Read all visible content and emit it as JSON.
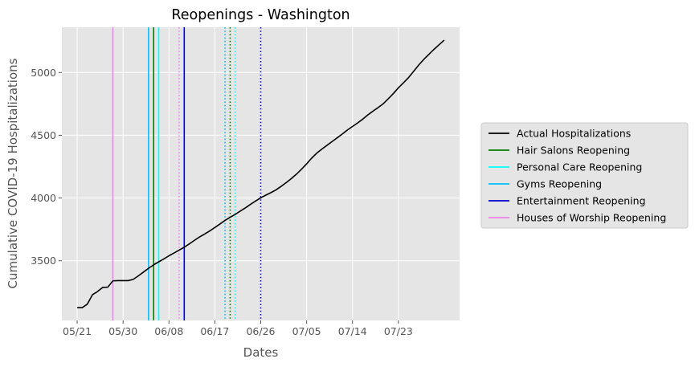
{
  "chart_data": {
    "type": "line",
    "title": "Reopenings - Washington",
    "xlabel": "Dates",
    "ylabel": "Cumulative COVID-19 Hospitalizations",
    "x_tick_labels": [
      "05/21",
      "05/30",
      "06/08",
      "06/17",
      "06/26",
      "07/05",
      "07/14",
      "07/23"
    ],
    "x_ticks": [
      "2020-05-21",
      "2020-05-30",
      "2020-06-08",
      "2020-06-17",
      "2020-06-26",
      "2020-07-05",
      "2020-07-14",
      "2020-07-23"
    ],
    "y_ticks": [
      3500,
      4000,
      4500,
      5000
    ],
    "x_range": [
      "2020-05-18",
      "2020-08-04"
    ],
    "ylim": [
      3025,
      5360
    ],
    "grid": true,
    "legend_position": "right outside",
    "series": [
      {
        "name": "Actual Hospitalizations",
        "color": "#000000",
        "points": [
          [
            "2020-05-21",
            3127
          ],
          [
            "2020-05-22",
            3127
          ],
          [
            "2020-05-23",
            3155
          ],
          [
            "2020-05-24",
            3230
          ],
          [
            "2020-05-25",
            3255
          ],
          [
            "2020-05-26",
            3288
          ],
          [
            "2020-05-27",
            3290
          ],
          [
            "2020-05-28",
            3340
          ],
          [
            "2020-05-29",
            3342
          ],
          [
            "2020-05-30",
            3342
          ],
          [
            "2020-05-31",
            3342
          ],
          [
            "2020-06-01",
            3352
          ],
          [
            "2020-06-02",
            3380
          ],
          [
            "2020-06-03",
            3410
          ],
          [
            "2020-06-04",
            3440
          ],
          [
            "2020-06-05",
            3468
          ],
          [
            "2020-06-06",
            3492
          ],
          [
            "2020-06-07",
            3515
          ],
          [
            "2020-06-08",
            3540
          ],
          [
            "2020-06-09",
            3562
          ],
          [
            "2020-06-10",
            3585
          ],
          [
            "2020-06-11",
            3608
          ],
          [
            "2020-06-12",
            3635
          ],
          [
            "2020-06-13",
            3663
          ],
          [
            "2020-06-14",
            3690
          ],
          [
            "2020-06-15",
            3713
          ],
          [
            "2020-06-16",
            3738
          ],
          [
            "2020-06-17",
            3765
          ],
          [
            "2020-06-18",
            3793
          ],
          [
            "2020-06-19",
            3822
          ],
          [
            "2020-06-20",
            3847
          ],
          [
            "2020-06-21",
            3870
          ],
          [
            "2020-06-22",
            3896
          ],
          [
            "2020-06-23",
            3922
          ],
          [
            "2020-06-24",
            3950
          ],
          [
            "2020-06-25",
            3976
          ],
          [
            "2020-06-26",
            4002
          ],
          [
            "2020-06-27",
            4023
          ],
          [
            "2020-06-28",
            4043
          ],
          [
            "2020-06-29",
            4065
          ],
          [
            "2020-06-30",
            4093
          ],
          [
            "2020-07-01",
            4123
          ],
          [
            "2020-07-02",
            4155
          ],
          [
            "2020-07-03",
            4190
          ],
          [
            "2020-07-04",
            4230
          ],
          [
            "2020-07-05",
            4272
          ],
          [
            "2020-07-06",
            4318
          ],
          [
            "2020-07-07",
            4358
          ],
          [
            "2020-07-08",
            4390
          ],
          [
            "2020-07-09",
            4420
          ],
          [
            "2020-07-10",
            4450
          ],
          [
            "2020-07-11",
            4480
          ],
          [
            "2020-07-12",
            4510
          ],
          [
            "2020-07-13",
            4542
          ],
          [
            "2020-07-14",
            4570
          ],
          [
            "2020-07-15",
            4598
          ],
          [
            "2020-07-16",
            4628
          ],
          [
            "2020-07-17",
            4662
          ],
          [
            "2020-07-18",
            4692
          ],
          [
            "2020-07-19",
            4720
          ],
          [
            "2020-07-20",
            4750
          ],
          [
            "2020-07-21",
            4790
          ],
          [
            "2020-07-22",
            4832
          ],
          [
            "2020-07-23",
            4878
          ],
          [
            "2020-07-24",
            4918
          ],
          [
            "2020-07-25",
            4960
          ],
          [
            "2020-07-26",
            5010
          ],
          [
            "2020-07-27",
            5060
          ],
          [
            "2020-07-28",
            5105
          ],
          [
            "2020-07-29",
            5145
          ],
          [
            "2020-07-30",
            5185
          ],
          [
            "2020-07-31",
            5222
          ],
          [
            "2020-08-01",
            5258
          ]
        ]
      }
    ],
    "reopening_lines": [
      {
        "name": "Hair Salons Reopening",
        "color": "#008000",
        "style": "solid",
        "date": "2020-06-05",
        "in_legend": true
      },
      {
        "name": "Personal Care Reopening",
        "color": "#00ffff",
        "style": "solid",
        "date": "2020-06-06",
        "in_legend": true
      },
      {
        "name": "Gyms Reopening",
        "color": "#00bfff",
        "style": "solid",
        "date": "2020-06-04",
        "in_legend": true
      },
      {
        "name": "Entertainment Reopening",
        "color": "#0000cd",
        "style": "solid",
        "date": "2020-06-11",
        "in_legend": true
      },
      {
        "name": "Houses of Worship Reopening",
        "color": "#ee82ee",
        "style": "solid",
        "date": "2020-05-28",
        "in_legend": true
      },
      {
        "color": "#ee82ee",
        "style": "dotted",
        "date": "2020-06-10",
        "in_legend": false
      },
      {
        "color": "#00bfff",
        "style": "dotted",
        "date": "2020-06-19",
        "in_legend": false
      },
      {
        "color": "#008000",
        "style": "dotted",
        "date": "2020-06-20",
        "in_legend": false
      },
      {
        "color": "#00ffff",
        "style": "dotted",
        "date": "2020-06-21",
        "in_legend": false
      },
      {
        "color": "#0000cd",
        "style": "dotted",
        "date": "2020-06-26",
        "in_legend": false
      }
    ],
    "legend": [
      {
        "label": "Actual Hospitalizations",
        "color": "#000000"
      },
      {
        "label": "Hair Salons Reopening",
        "color": "#008000"
      },
      {
        "label": "Personal Care Reopening",
        "color": "#00ffff"
      },
      {
        "label": "Gyms Reopening",
        "color": "#00bfff"
      },
      {
        "label": "Entertainment Reopening",
        "color": "#0000cd"
      },
      {
        "label": "Houses of Worship Reopening",
        "color": "#ee82ee"
      }
    ]
  }
}
